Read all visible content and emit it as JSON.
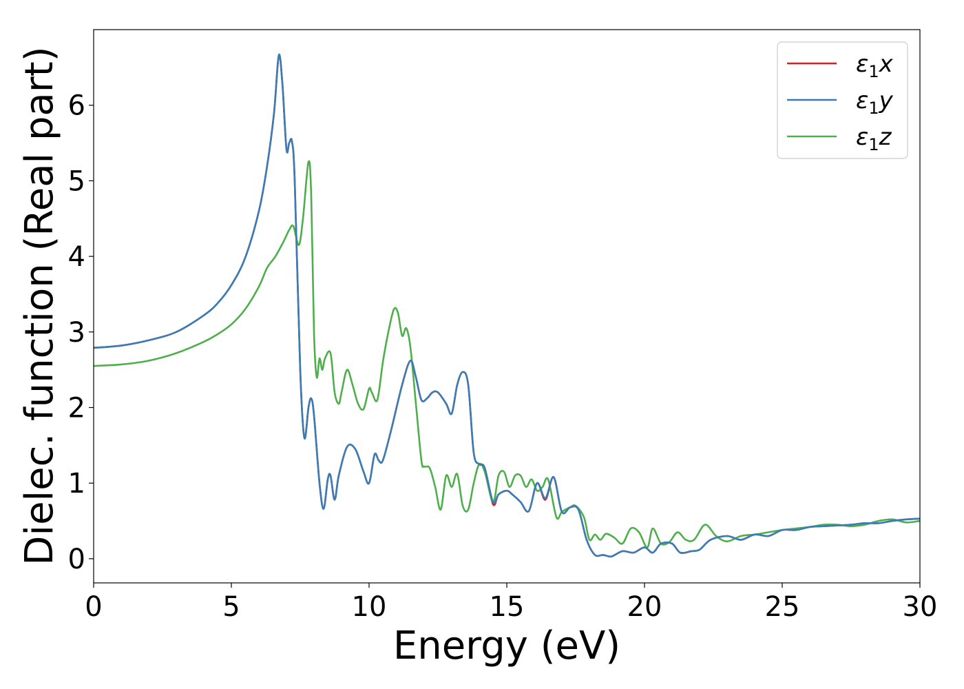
{
  "chart_data": {
    "type": "line",
    "title": "",
    "xlabel": "Energy (eV)",
    "ylabel": "Dielec. function (Real part)",
    "xlim": [
      0,
      30
    ],
    "ylim": [
      -0.32,
      7.0
    ],
    "xticks": [
      0,
      5,
      10,
      15,
      20,
      25,
      30
    ],
    "yticks": [
      0,
      1,
      2,
      3,
      4,
      5,
      6
    ],
    "grid": false,
    "legend_position": "top-right",
    "series": [
      {
        "name": "ε1x",
        "legend_base": "ε",
        "legend_sub": "1",
        "legend_suffix": "x",
        "color": "#e41a1c",
        "x": [
          0,
          1,
          2,
          3,
          4,
          4.5,
          5,
          5.5,
          6,
          6.3,
          6.55,
          6.72,
          6.85,
          7.0,
          7.1,
          7.2,
          7.3,
          7.5,
          7.65,
          7.8,
          7.9,
          8.0,
          8.2,
          8.35,
          8.5,
          8.6,
          8.75,
          8.9,
          9.2,
          9.5,
          9.8,
          10.0,
          10.2,
          10.35,
          10.5,
          10.8,
          11.2,
          11.5,
          11.7,
          11.9,
          12.1,
          12.3,
          12.5,
          12.8,
          13.0,
          13.2,
          13.4,
          13.6,
          13.8,
          14.0,
          14.2,
          14.5,
          14.7,
          15.0,
          15.2,
          15.5,
          15.8,
          16.1,
          16.4,
          16.7,
          17.0,
          17.3,
          17.6,
          17.9,
          18.2,
          18.5,
          18.8,
          19.2,
          19.6,
          20.0,
          20.3,
          20.6,
          21.0,
          21.3,
          21.7,
          22.0,
          22.4,
          23.0,
          23.5,
          24.0,
          24.5,
          25.0,
          25.5,
          26.0,
          26.5,
          27.0,
          27.5,
          28.0,
          28.5,
          29.0,
          29.5,
          30.0
        ],
        "y": [
          2.79,
          2.82,
          2.89,
          3.0,
          3.22,
          3.38,
          3.62,
          3.98,
          4.6,
          5.2,
          5.9,
          6.65,
          6.3,
          5.42,
          5.5,
          5.52,
          5.0,
          2.5,
          1.6,
          2.0,
          2.12,
          1.9,
          1.0,
          0.66,
          1.05,
          1.1,
          0.78,
          1.1,
          1.48,
          1.45,
          1.15,
          1.0,
          1.38,
          1.3,
          1.3,
          1.7,
          2.3,
          2.62,
          2.4,
          2.1,
          2.12,
          2.2,
          2.2,
          2.05,
          1.92,
          2.3,
          2.47,
          2.3,
          1.4,
          1.25,
          1.2,
          0.72,
          0.85,
          0.9,
          0.85,
          0.75,
          0.63,
          1.0,
          0.78,
          1.08,
          0.62,
          0.68,
          0.65,
          0.25,
          0.05,
          0.05,
          0.03,
          0.1,
          0.08,
          0.15,
          0.08,
          0.2,
          0.2,
          0.08,
          0.1,
          0.12,
          0.25,
          0.3,
          0.25,
          0.32,
          0.3,
          0.38,
          0.38,
          0.42,
          0.43,
          0.44,
          0.45,
          0.47,
          0.47,
          0.5,
          0.52,
          0.53
        ]
      },
      {
        "name": "ε1y",
        "legend_base": "ε",
        "legend_sub": "1",
        "legend_suffix": "y",
        "color": "#377eb8",
        "x": [
          0,
          1,
          2,
          3,
          4,
          4.5,
          5,
          5.5,
          6,
          6.3,
          6.55,
          6.72,
          6.85,
          7.0,
          7.1,
          7.2,
          7.3,
          7.5,
          7.65,
          7.8,
          7.9,
          8.0,
          8.2,
          8.35,
          8.5,
          8.6,
          8.75,
          8.9,
          9.2,
          9.5,
          9.8,
          10.0,
          10.2,
          10.35,
          10.5,
          10.8,
          11.2,
          11.5,
          11.7,
          11.9,
          12.1,
          12.3,
          12.5,
          12.8,
          13.0,
          13.2,
          13.4,
          13.6,
          13.8,
          14.0,
          14.2,
          14.5,
          14.7,
          15.0,
          15.2,
          15.5,
          15.8,
          16.1,
          16.4,
          16.7,
          17.0,
          17.3,
          17.6,
          17.9,
          18.2,
          18.5,
          18.8,
          19.2,
          19.6,
          20.0,
          20.3,
          20.6,
          21.0,
          21.3,
          21.7,
          22.0,
          22.4,
          23.0,
          23.5,
          24.0,
          24.5,
          25.0,
          25.5,
          26.0,
          26.5,
          27.0,
          27.5,
          28.0,
          28.5,
          29.0,
          29.5,
          30.0
        ],
        "y": [
          2.79,
          2.82,
          2.89,
          3.0,
          3.22,
          3.38,
          3.62,
          3.98,
          4.6,
          5.2,
          5.9,
          6.66,
          6.3,
          5.42,
          5.5,
          5.52,
          5.0,
          2.5,
          1.6,
          2.0,
          2.12,
          1.9,
          1.0,
          0.66,
          1.05,
          1.1,
          0.78,
          1.1,
          1.48,
          1.45,
          1.15,
          1.0,
          1.38,
          1.3,
          1.3,
          1.7,
          2.3,
          2.62,
          2.4,
          2.1,
          2.12,
          2.2,
          2.2,
          2.05,
          1.92,
          2.3,
          2.47,
          2.3,
          1.4,
          1.25,
          1.2,
          0.75,
          0.85,
          0.9,
          0.85,
          0.75,
          0.63,
          1.0,
          0.8,
          1.08,
          0.62,
          0.68,
          0.65,
          0.25,
          0.05,
          0.05,
          0.03,
          0.1,
          0.08,
          0.15,
          0.08,
          0.2,
          0.2,
          0.08,
          0.1,
          0.12,
          0.25,
          0.3,
          0.25,
          0.32,
          0.3,
          0.38,
          0.38,
          0.42,
          0.43,
          0.44,
          0.45,
          0.47,
          0.47,
          0.5,
          0.52,
          0.53
        ]
      },
      {
        "name": "ε1z",
        "legend_base": "ε",
        "legend_sub": "1",
        "legend_suffix": "z",
        "color": "#4daf4a",
        "x": [
          0,
          1,
          2,
          3,
          4,
          4.5,
          5,
          5.5,
          6,
          6.3,
          6.6,
          6.9,
          7.1,
          7.25,
          7.45,
          7.6,
          7.8,
          7.9,
          8.0,
          8.1,
          8.2,
          8.3,
          8.4,
          8.6,
          8.75,
          8.9,
          9.0,
          9.2,
          9.4,
          9.6,
          9.8,
          10.0,
          10.1,
          10.3,
          10.5,
          10.7,
          10.9,
          11.05,
          11.2,
          11.35,
          11.5,
          11.7,
          11.9,
          12.0,
          12.2,
          12.4,
          12.6,
          12.8,
          13.0,
          13.2,
          13.4,
          13.6,
          13.8,
          14.0,
          14.2,
          14.5,
          14.7,
          14.9,
          15.1,
          15.3,
          15.5,
          15.7,
          15.9,
          16.1,
          16.3,
          16.5,
          16.8,
          17.0,
          17.3,
          17.5,
          17.8,
          18.0,
          18.2,
          18.4,
          18.6,
          18.9,
          19.2,
          19.5,
          19.8,
          20.1,
          20.3,
          20.6,
          20.9,
          21.2,
          21.5,
          21.8,
          22.2,
          22.6,
          23.0,
          23.5,
          24.0,
          24.5,
          25.0,
          25.5,
          26.0,
          26.5,
          27.0,
          27.5,
          28.0,
          28.5,
          29.0,
          29.5,
          30.0
        ],
        "y": [
          2.55,
          2.57,
          2.62,
          2.72,
          2.87,
          2.97,
          3.1,
          3.3,
          3.6,
          3.85,
          4.0,
          4.2,
          4.35,
          4.4,
          4.15,
          4.5,
          5.25,
          4.8,
          3.0,
          2.4,
          2.65,
          2.5,
          2.65,
          2.72,
          2.2,
          2.05,
          2.2,
          2.5,
          2.3,
          2.05,
          1.98,
          2.25,
          2.2,
          2.1,
          2.6,
          3.0,
          3.3,
          3.25,
          2.95,
          3.05,
          2.8,
          2.05,
          1.3,
          1.22,
          1.2,
          0.95,
          0.65,
          1.1,
          0.95,
          1.12,
          0.7,
          0.65,
          1.0,
          1.25,
          1.15,
          0.75,
          1.1,
          1.15,
          0.95,
          1.1,
          1.1,
          0.95,
          1.05,
          0.9,
          0.95,
          1.05,
          0.55,
          0.62,
          0.68,
          0.7,
          0.55,
          0.25,
          0.32,
          0.25,
          0.33,
          0.28,
          0.2,
          0.4,
          0.35,
          0.15,
          0.4,
          0.2,
          0.22,
          0.35,
          0.25,
          0.25,
          0.45,
          0.3,
          0.23,
          0.3,
          0.32,
          0.35,
          0.38,
          0.4,
          0.42,
          0.45,
          0.45,
          0.43,
          0.45,
          0.5,
          0.52,
          0.48,
          0.5
        ]
      }
    ]
  }
}
